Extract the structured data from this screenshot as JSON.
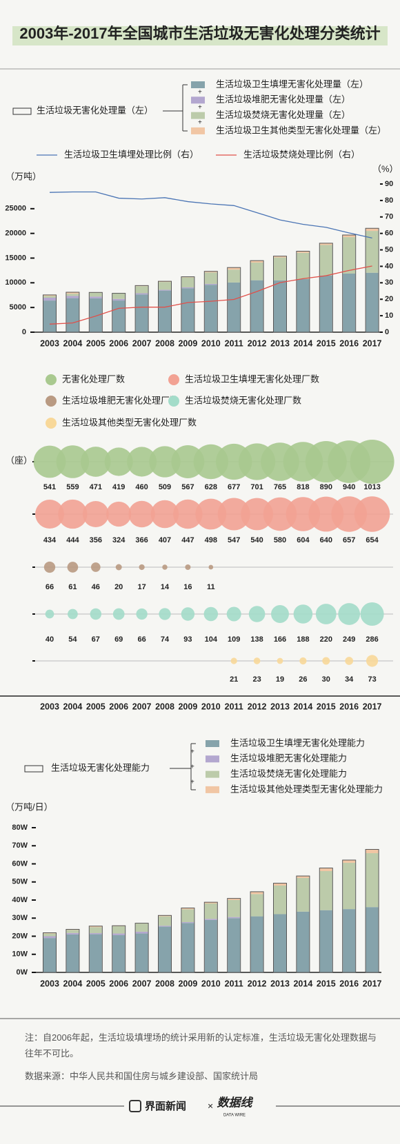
{
  "title": "2003年-2017年全国城市生活垃圾无害化处理分类统计",
  "chart_data": [
    {
      "type": "combo",
      "categories": [
        "2003",
        "2004",
        "2005",
        "2006",
        "2007",
        "2008",
        "2009",
        "2010",
        "2011",
        "2012",
        "2013",
        "2014",
        "2015",
        "2016",
        "2017"
      ],
      "ylabel": "（万吨）",
      "y2label": "（%）",
      "ylim": [
        0,
        30000
      ],
      "yticks": [
        0,
        5000,
        10000,
        15000,
        20000,
        25000
      ],
      "y2lim": [
        0,
        90
      ],
      "y2ticks": [
        0,
        10,
        20,
        30,
        40,
        50,
        60,
        70,
        80,
        90
      ],
      "total": {
        "name": "生活垃圾无害化处理量（左）",
        "values": [
          7545,
          8089,
          8051,
          7873,
          9438,
          10307,
          11220,
          12318,
          13090,
          14490,
          15394,
          16394,
          18013,
          19674,
          21034
        ]
      },
      "series": [
        {
          "name": "生活垃圾卫生填埋无害化处理量（左）",
          "color": "#86a3ab",
          "values": [
            6404,
            6889,
            6857,
            6409,
            7633,
            8424,
            8899,
            9598,
            10064,
            10513,
            10493,
            10744,
            11483,
            11866,
            12038
          ]
        },
        {
          "name": "生活垃圾堆肥无害化处理量（左）",
          "color": "#b3a7cf",
          "values": [
            571,
            450,
            345,
            325,
            250,
            174,
            178,
            180,
            0,
            0,
            0,
            0,
            0,
            0,
            0
          ]
        },
        {
          "name": "生活垃圾焚烧无害化处理量（左）",
          "color": "#bccbaa",
          "values": [
            370,
            449,
            791,
            1138,
            1435,
            1570,
            2022,
            2317,
            2599,
            3584,
            4633,
            5330,
            6176,
            7378,
            8463
          ]
        },
        {
          "name": "生活垃圾卫生其他类型无害化处理量（左）",
          "color": "#f1c6a4",
          "values": [
            200,
            301,
            58,
            1,
            120,
            139,
            121,
            223,
            427,
            393,
            268,
            320,
            354,
            430,
            533
          ]
        }
      ],
      "line_series": [
        {
          "name": "生活垃圾卫生填埋处理比例（右）",
          "color": "#4a74b4",
          "axis": "y2",
          "values": [
            84.9,
            85.2,
            85.2,
            81.4,
            80.9,
            81.7,
            79.3,
            77.9,
            76.9,
            72.6,
            68.2,
            65.5,
            63.7,
            60.3,
            57.2
          ]
        },
        {
          "name": "生活垃圾焚烧处理比例（右）",
          "color": "#e0504a",
          "axis": "y2",
          "values": [
            4.9,
            5.6,
            9.8,
            14.5,
            15.2,
            15.2,
            18.0,
            18.8,
            19.9,
            24.7,
            30.1,
            32.5,
            34.3,
            37.5,
            40.2
          ]
        }
      ]
    },
    {
      "type": "bubble",
      "categories": [
        "2003",
        "2004",
        "2005",
        "2006",
        "2007",
        "2008",
        "2009",
        "2010",
        "2011",
        "2012",
        "2013",
        "2014",
        "2015",
        "2016",
        "2017"
      ],
      "ylabel": "（座）",
      "series": [
        {
          "name": "无害化处理厂数",
          "color": "#a9c98f",
          "values": [
            541,
            559,
            471,
            419,
            460,
            509,
            567,
            628,
            677,
            701,
            765,
            818,
            890,
            940,
            1013
          ]
        },
        {
          "name": "生活垃圾卫生填埋无害化处理厂数",
          "color": "#f2a293",
          "values": [
            434,
            444,
            356,
            324,
            366,
            407,
            447,
            498,
            547,
            540,
            580,
            604,
            640,
            657,
            654
          ]
        },
        {
          "name": "生活垃圾堆肥无害化处理厂数",
          "color": "#b99a82",
          "values": [
            66,
            61,
            46,
            20,
            17,
            14,
            16,
            11,
            null,
            null,
            null,
            null,
            null,
            null,
            null
          ]
        },
        {
          "name": "生活垃圾焚烧无害化处理厂数",
          "color": "#a3dcc9",
          "values": [
            40,
            54,
            67,
            69,
            66,
            74,
            93,
            104,
            109,
            138,
            166,
            188,
            220,
            249,
            286
          ]
        },
        {
          "name": "生活垃圾其他类型无害化处理厂数",
          "color": "#f8d899",
          "values": [
            null,
            null,
            null,
            null,
            null,
            null,
            null,
            null,
            21,
            23,
            19,
            26,
            30,
            34,
            73
          ]
        }
      ]
    },
    {
      "type": "bar",
      "categories": [
        "2003",
        "2004",
        "2005",
        "2006",
        "2007",
        "2008",
        "2009",
        "2010",
        "2011",
        "2012",
        "2013",
        "2014",
        "2015",
        "2016",
        "2017"
      ],
      "ylabel": "（万吨/日）",
      "ylim": [
        0,
        80
      ],
      "yticks": [
        {
          "value": 0,
          "label": "0W"
        },
        {
          "value": 10,
          "label": "10W"
        },
        {
          "value": 20,
          "label": "20W"
        },
        {
          "value": 30,
          "label": "30W"
        },
        {
          "value": 40,
          "label": "40W"
        },
        {
          "value": 50,
          "label": "50W"
        },
        {
          "value": 60,
          "label": "60W"
        },
        {
          "value": 70,
          "label": "70W"
        },
        {
          "value": 80,
          "label": "80W"
        }
      ],
      "total": {
        "name": "生活垃圾无害化处理能力",
        "values": [
          21.9,
          23.8,
          25.6,
          25.8,
          27.2,
          31.5,
          35.6,
          38.8,
          40.9,
          44.6,
          49.3,
          53.3,
          57.7,
          62.1,
          68.0
        ]
      },
      "series": [
        {
          "name": "生活垃圾卫生填埋无害化处理能力",
          "color": "#86a3ab",
          "values": [
            19.0,
            21.0,
            21.1,
            20.6,
            21.5,
            25.3,
            27.3,
            29.0,
            30.0,
            31.0,
            32.2,
            33.6,
            34.4,
            35.0,
            36.1
          ]
        },
        {
          "name": "生活垃圾堆肥无害化处理能力",
          "color": "#b3a7cf",
          "values": [
            1.0,
            0.8,
            0.6,
            0.9,
            1.0,
            0.5,
            0.5,
            0.6,
            0.6,
            0,
            0,
            0,
            0,
            0,
            0
          ]
        },
        {
          "name": "生活垃圾焚烧无害化处理能力",
          "color": "#bccbaa",
          "values": [
            1.5,
            1.7,
            3.3,
            4.0,
            4.5,
            5.2,
            7.1,
            8.5,
            9.4,
            12.3,
            15.8,
            18.6,
            21.6,
            25.6,
            29.8
          ]
        },
        {
          "name": "生活垃圾其他处理类型无害化处理能力",
          "color": "#f1c6a4",
          "values": [
            0.4,
            0.3,
            0.6,
            0.3,
            0.2,
            0.5,
            0.7,
            0.7,
            0.9,
            1.3,
            1.3,
            1.1,
            1.7,
            1.5,
            2.1
          ]
        }
      ]
    }
  ],
  "note": "注：自2006年起，生活垃圾填埋场的统计采用新的认定标准，生活垃圾无害化处理数据与往年不可比。",
  "source": "数据来源：中华人民共和国住房与城乡建设部、国家统计局",
  "footer": {
    "brand": "界面新闻",
    "separator": "×",
    "partner": "数据线",
    "partner_sub": "DATA WIRE"
  }
}
